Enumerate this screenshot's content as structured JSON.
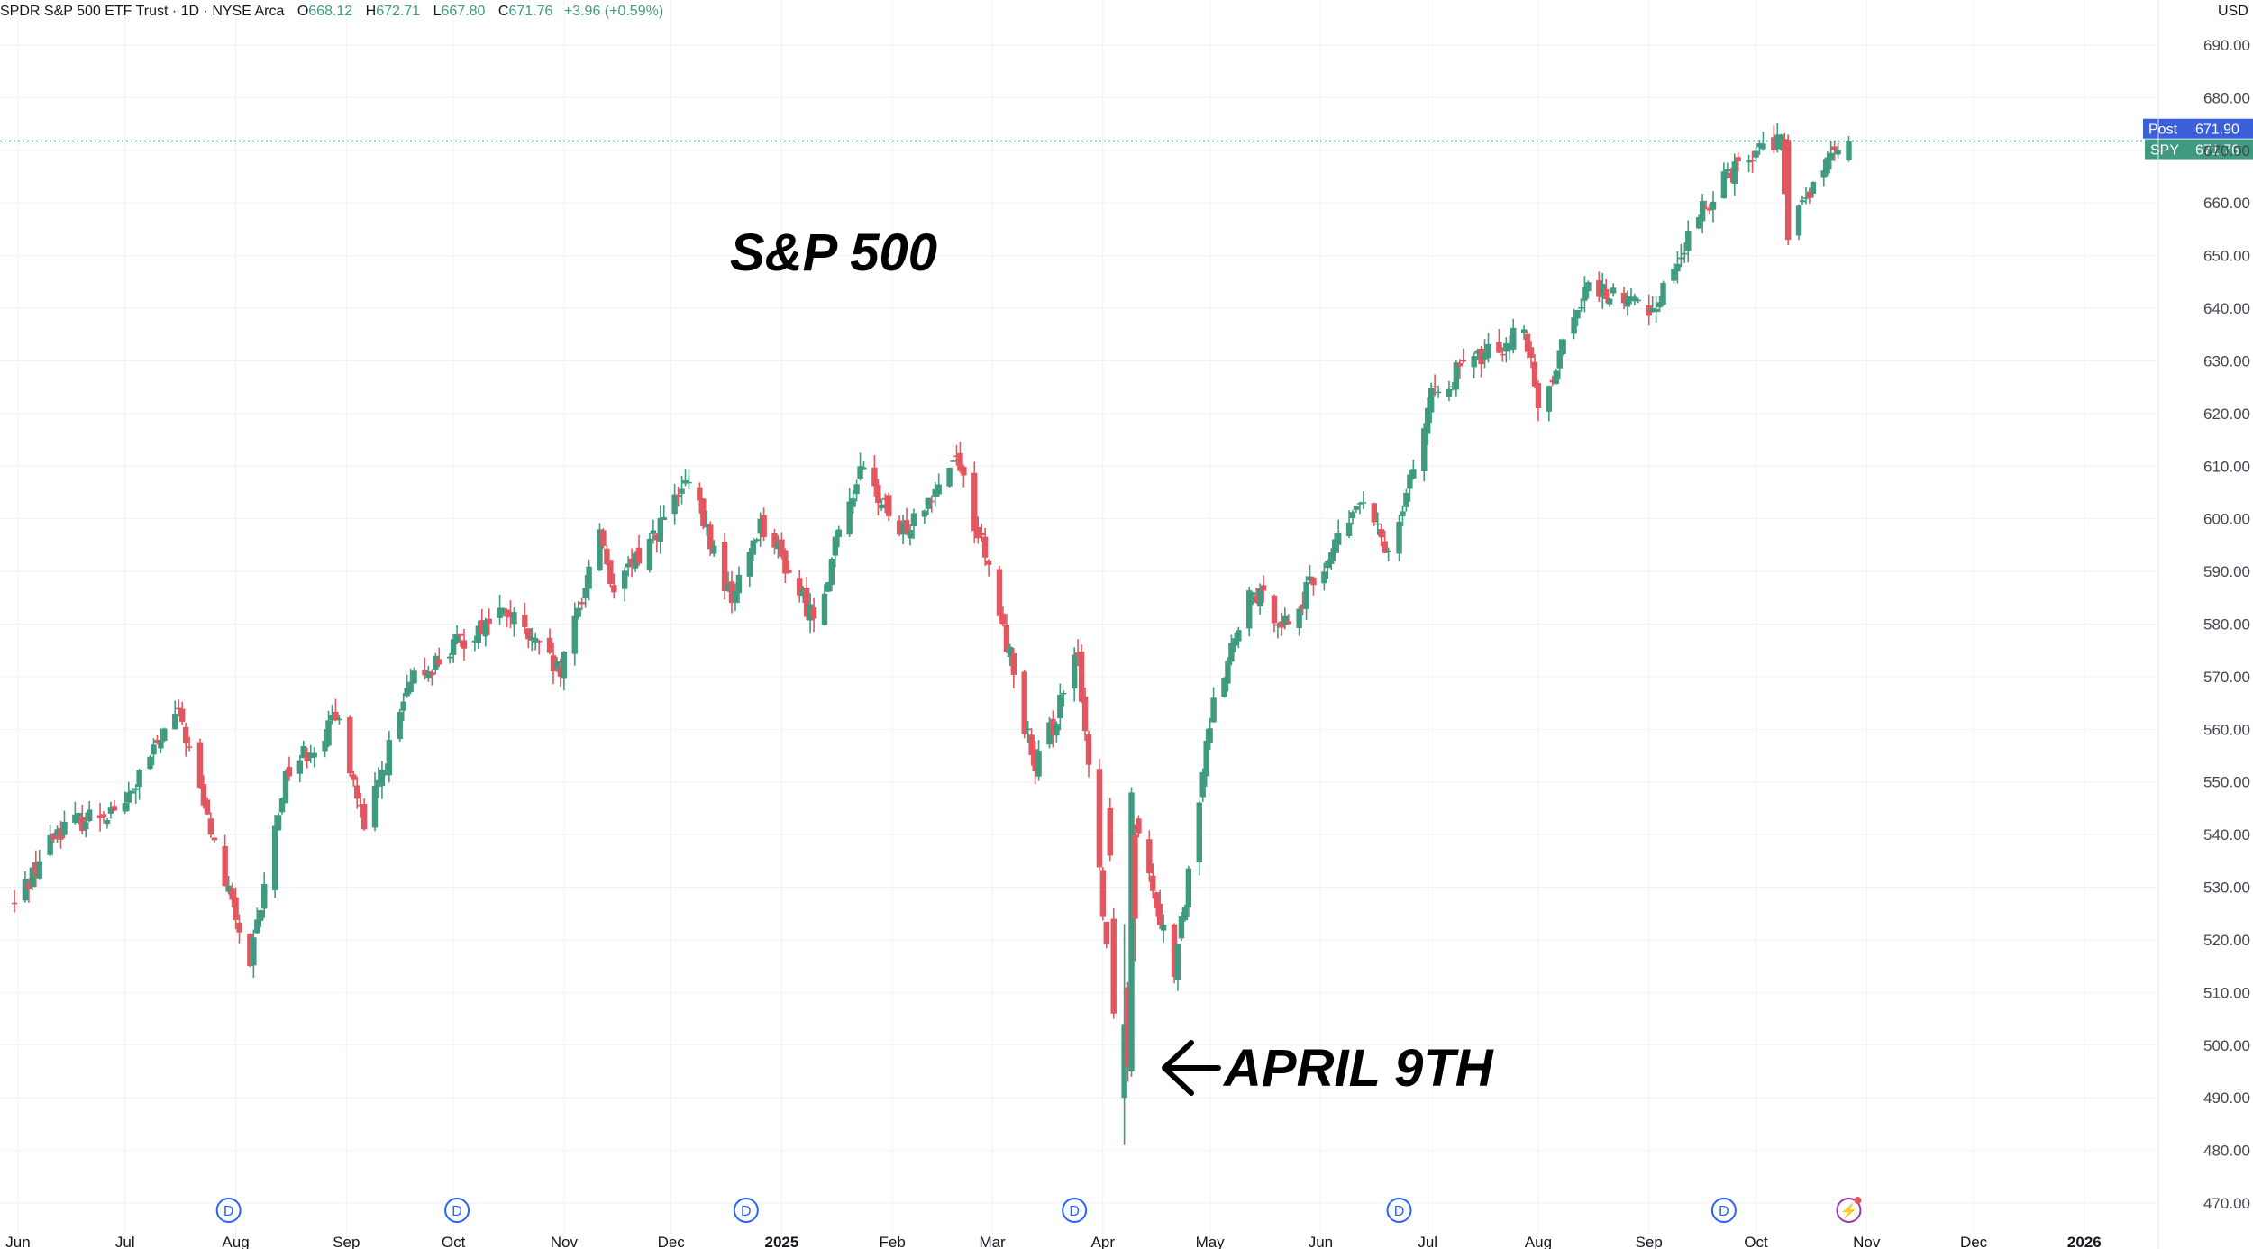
{
  "header": {
    "symbol_line": "SPDR S&P 500 ETF Trust · 1D · NYSE Arca",
    "open_label": "O",
    "open": "668.12",
    "high_label": "H",
    "high": "672.71",
    "low_label": "L",
    "low": "667.80",
    "close_label": "C",
    "close": "671.76",
    "change": "+3.96 (+0.59%)"
  },
  "axis": {
    "currency": "USD"
  },
  "price_tags": {
    "post": {
      "label": "Post",
      "value": "671.90",
      "price": 671.9,
      "color": "#3b5fd9"
    },
    "spy": {
      "label": "SPY",
      "value": "671.76",
      "price": 671.76,
      "color": "#3f9a80"
    }
  },
  "annotations": {
    "title": "S&P 500",
    "april_label": "APRIL 9TH"
  },
  "event_markers": [
    {
      "label": "D",
      "x": "Jul 30",
      "kind": "dividend"
    },
    {
      "label": "D",
      "x": "Oct 2",
      "kind": "dividend"
    },
    {
      "label": "D",
      "x": "Dec 22",
      "kind": "dividend"
    },
    {
      "label": "D",
      "x": "Mar 24",
      "kind": "dividend"
    },
    {
      "label": "D",
      "x": "Jun 23",
      "kind": "dividend"
    },
    {
      "label": "D",
      "x": "Sep 22",
      "kind": "dividend"
    },
    {
      "label": "⚡",
      "x": "Oct 27",
      "kind": "earnings"
    }
  ],
  "colors": {
    "up": "#3f9a80",
    "down": "#e25660",
    "grid": "#f1f2f5",
    "text": "#131722",
    "axis_text": "#434651"
  },
  "chart_data": {
    "type": "candlestick",
    "title": "S&P 500",
    "ylabel": "USD",
    "ylim": [
      467,
      692
    ],
    "y_ticks": [
      470,
      480,
      490,
      500,
      510,
      520,
      530,
      540,
      550,
      560,
      570,
      580,
      590,
      600,
      610,
      620,
      630,
      640,
      650,
      660,
      670,
      680,
      690
    ],
    "x_ticks": [
      "Jun",
      "Jul",
      "Aug",
      "Sep",
      "Oct",
      "Nov",
      "Dec",
      "2025",
      "Feb",
      "Mar",
      "Apr",
      "May",
      "Jun",
      "Jul",
      "Aug",
      "Sep",
      "Oct",
      "Nov",
      "Dec",
      "2026"
    ],
    "grid": true,
    "series_trend": [
      {
        "x": "2024-05-31",
        "close": 527
      },
      {
        "x": "2024-06-12",
        "close": 541
      },
      {
        "x": "2024-07-01",
        "close": 546
      },
      {
        "x": "2024-07-16",
        "close": 564
      },
      {
        "x": "2024-07-25",
        "close": 540
      },
      {
        "x": "2024-08-05",
        "close": 515
      },
      {
        "x": "2024-08-15",
        "close": 552
      },
      {
        "x": "2024-08-30",
        "close": 562
      },
      {
        "x": "2024-09-06",
        "close": 541
      },
      {
        "x": "2024-09-19",
        "close": 569
      },
      {
        "x": "2024-10-15",
        "close": 583
      },
      {
        "x": "2024-10-31",
        "close": 570
      },
      {
        "x": "2024-11-11",
        "close": 598
      },
      {
        "x": "2024-11-15",
        "close": 586
      },
      {
        "x": "2024-12-06",
        "close": 607
      },
      {
        "x": "2024-12-18",
        "close": 584
      },
      {
        "x": "2024-12-26",
        "close": 600
      },
      {
        "x": "2025-01-10",
        "close": 581
      },
      {
        "x": "2025-01-23",
        "close": 610
      },
      {
        "x": "2025-02-03",
        "close": 597
      },
      {
        "x": "2025-02-19",
        "close": 612
      },
      {
        "x": "2025-03-04",
        "close": 580
      },
      {
        "x": "2025-03-13",
        "close": 552
      },
      {
        "x": "2025-03-25",
        "close": 574
      },
      {
        "x": "2025-04-04",
        "close": 506
      },
      {
        "x": "2025-04-08",
        "close": 496
      },
      {
        "x": "2025-04-09",
        "close": 548
      },
      {
        "x": "2025-04-21",
        "close": 513
      },
      {
        "x": "2025-05-02",
        "close": 566
      },
      {
        "x": "2025-05-13",
        "close": 586
      },
      {
        "x": "2025-05-23",
        "close": 580
      },
      {
        "x": "2025-06-12",
        "close": 603
      },
      {
        "x": "2025-06-20",
        "close": 594
      },
      {
        "x": "2025-07-03",
        "close": 625
      },
      {
        "x": "2025-07-28",
        "close": 636
      },
      {
        "x": "2025-08-01",
        "close": 621
      },
      {
        "x": "2025-08-14",
        "close": 644
      },
      {
        "x": "2025-09-02",
        "close": 640
      },
      {
        "x": "2025-09-22",
        "close": 666
      },
      {
        "x": "2025-10-08",
        "close": 673
      },
      {
        "x": "2025-10-10",
        "close": 653
      },
      {
        "x": "2025-10-17",
        "close": 664
      },
      {
        "x": "2025-10-27",
        "close": 671.76
      }
    ]
  }
}
